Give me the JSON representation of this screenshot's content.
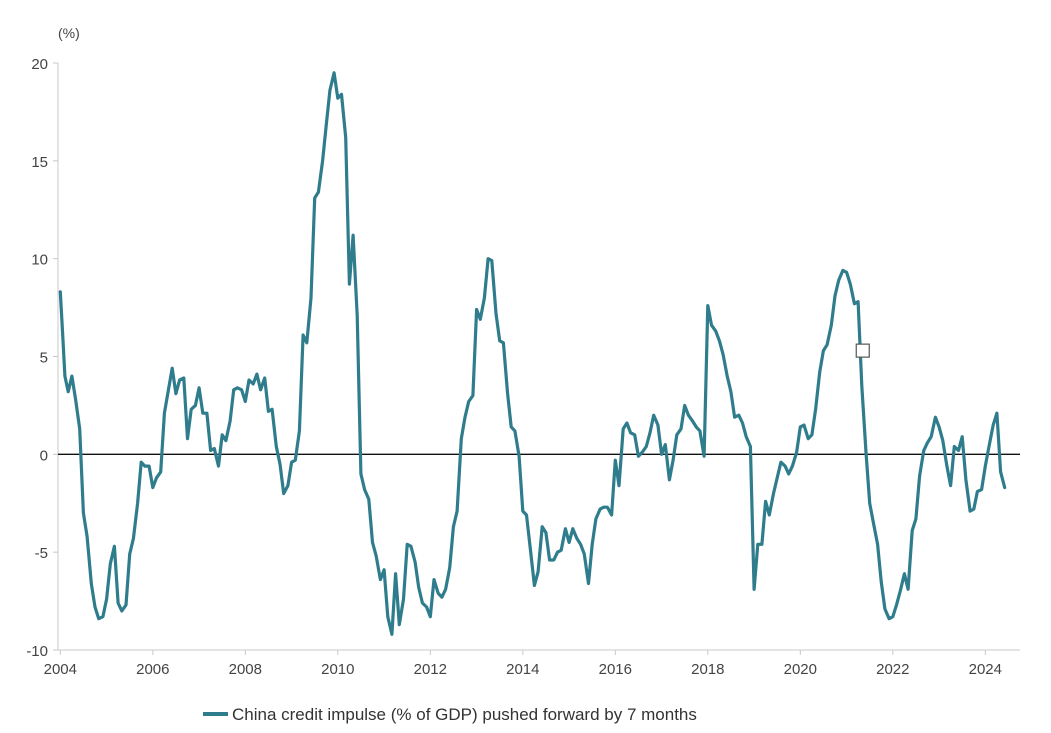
{
  "chart_data": {
    "type": "line",
    "title": "",
    "xlabel": "",
    "ylabel": "(%)",
    "xlim": [
      2003.95,
      2024.75
    ],
    "ylim": [
      -10,
      20
    ],
    "x_ticks": [
      "2004",
      "2006",
      "2008",
      "2010",
      "2012",
      "2014",
      "2016",
      "2018",
      "2020",
      "2022",
      "2024"
    ],
    "y_ticks": [
      "20",
      "15",
      "10",
      "5",
      "0",
      "-5",
      "-10"
    ],
    "grid": false,
    "zero_line": true,
    "legend_position": "bottom-center",
    "legend_marker": "line",
    "annotation_marker": {
      "shape": "square",
      "x": 2021.35,
      "y": 5.3
    },
    "series": [
      {
        "name": "China credit impulse (% of GDP) pushed forward by 7 months",
        "color": "#2f7d8c",
        "points": [
          [
            2004.0,
            8.3
          ],
          [
            2004.05,
            6.2
          ],
          [
            2004.1,
            4.0
          ],
          [
            2004.17,
            3.2
          ],
          [
            2004.25,
            4.0
          ],
          [
            2004.33,
            2.8
          ],
          [
            2004.42,
            1.3
          ],
          [
            2004.5,
            -3.0
          ],
          [
            2004.58,
            -4.2
          ],
          [
            2004.67,
            -6.6
          ],
          [
            2004.75,
            -7.8
          ],
          [
            2004.83,
            -8.4
          ],
          [
            2004.92,
            -8.3
          ],
          [
            2005.0,
            -7.4
          ],
          [
            2005.08,
            -5.6
          ],
          [
            2005.17,
            -4.7
          ],
          [
            2005.25,
            -7.6
          ],
          [
            2005.33,
            -8.0
          ],
          [
            2005.42,
            -7.7
          ],
          [
            2005.5,
            -5.1
          ],
          [
            2005.58,
            -4.3
          ],
          [
            2005.67,
            -2.5
          ],
          [
            2005.75,
            -0.4
          ],
          [
            2005.83,
            -0.6
          ],
          [
            2005.92,
            -0.6
          ],
          [
            2006.0,
            -1.7
          ],
          [
            2006.08,
            -1.2
          ],
          [
            2006.17,
            -0.9
          ],
          [
            2006.25,
            2.1
          ],
          [
            2006.33,
            3.2
          ],
          [
            2006.42,
            4.4
          ],
          [
            2006.5,
            3.1
          ],
          [
            2006.58,
            3.8
          ],
          [
            2006.67,
            3.9
          ],
          [
            2006.75,
            0.8
          ],
          [
            2006.83,
            2.3
          ],
          [
            2006.92,
            2.5
          ],
          [
            2007.0,
            3.4
          ],
          [
            2007.08,
            2.1
          ],
          [
            2007.17,
            2.1
          ],
          [
            2007.25,
            0.2
          ],
          [
            2007.33,
            0.3
          ],
          [
            2007.42,
            -0.6
          ],
          [
            2007.5,
            1.0
          ],
          [
            2007.58,
            0.7
          ],
          [
            2007.67,
            1.7
          ],
          [
            2007.75,
            3.3
          ],
          [
            2007.83,
            3.4
          ],
          [
            2007.92,
            3.3
          ],
          [
            2008.0,
            2.7
          ],
          [
            2008.08,
            3.8
          ],
          [
            2008.17,
            3.6
          ],
          [
            2008.25,
            4.1
          ],
          [
            2008.33,
            3.3
          ],
          [
            2008.42,
            3.9
          ],
          [
            2008.5,
            2.2
          ],
          [
            2008.58,
            2.3
          ],
          [
            2008.67,
            0.4
          ],
          [
            2008.75,
            -0.5
          ],
          [
            2008.83,
            -2.0
          ],
          [
            2008.92,
            -1.6
          ],
          [
            2009.0,
            -0.4
          ],
          [
            2009.08,
            -0.3
          ],
          [
            2009.17,
            1.2
          ],
          [
            2009.25,
            6.1
          ],
          [
            2009.33,
            5.7
          ],
          [
            2009.42,
            8.0
          ],
          [
            2009.5,
            13.1
          ],
          [
            2009.58,
            13.4
          ],
          [
            2009.67,
            15.0
          ],
          [
            2009.75,
            16.8
          ],
          [
            2009.83,
            18.6
          ],
          [
            2009.92,
            19.5
          ],
          [
            2010.0,
            18.2
          ],
          [
            2010.08,
            18.4
          ],
          [
            2010.17,
            16.2
          ],
          [
            2010.25,
            8.7
          ],
          [
            2010.33,
            11.2
          ],
          [
            2010.42,
            7.1
          ],
          [
            2010.5,
            -1.0
          ],
          [
            2010.58,
            -1.8
          ],
          [
            2010.67,
            -2.3
          ],
          [
            2010.75,
            -4.5
          ],
          [
            2010.83,
            -5.2
          ],
          [
            2010.92,
            -6.4
          ],
          [
            2011.0,
            -5.9
          ],
          [
            2011.08,
            -8.3
          ],
          [
            2011.17,
            -9.2
          ],
          [
            2011.25,
            -6.1
          ],
          [
            2011.33,
            -8.7
          ],
          [
            2011.42,
            -7.4
          ],
          [
            2011.5,
            -4.6
          ],
          [
            2011.58,
            -4.7
          ],
          [
            2011.67,
            -5.5
          ],
          [
            2011.75,
            -6.8
          ],
          [
            2011.83,
            -7.6
          ],
          [
            2011.92,
            -7.8
          ],
          [
            2012.0,
            -8.3
          ],
          [
            2012.08,
            -6.4
          ],
          [
            2012.17,
            -7.1
          ],
          [
            2012.25,
            -7.3
          ],
          [
            2012.33,
            -6.9
          ],
          [
            2012.42,
            -5.8
          ],
          [
            2012.5,
            -3.7
          ],
          [
            2012.58,
            -2.9
          ],
          [
            2012.67,
            0.8
          ],
          [
            2012.75,
            1.9
          ],
          [
            2012.83,
            2.7
          ],
          [
            2012.92,
            3.0
          ],
          [
            2013.0,
            7.4
          ],
          [
            2013.08,
            6.9
          ],
          [
            2013.17,
            8.0
          ],
          [
            2013.25,
            10.0
          ],
          [
            2013.33,
            9.9
          ],
          [
            2013.42,
            7.2
          ],
          [
            2013.5,
            5.8
          ],
          [
            2013.58,
            5.7
          ],
          [
            2013.67,
            3.1
          ],
          [
            2013.75,
            1.4
          ],
          [
            2013.83,
            1.2
          ],
          [
            2013.92,
            -0.1
          ],
          [
            2014.0,
            -2.9
          ],
          [
            2014.08,
            -3.1
          ],
          [
            2014.17,
            -5.0
          ],
          [
            2014.25,
            -6.7
          ],
          [
            2014.33,
            -6.0
          ],
          [
            2014.42,
            -3.7
          ],
          [
            2014.5,
            -4.0
          ],
          [
            2014.58,
            -5.4
          ],
          [
            2014.67,
            -5.4
          ],
          [
            2014.75,
            -5.0
          ],
          [
            2014.83,
            -4.9
          ],
          [
            2014.92,
            -3.8
          ],
          [
            2015.0,
            -4.5
          ],
          [
            2015.08,
            -3.8
          ],
          [
            2015.17,
            -4.3
          ],
          [
            2015.25,
            -4.6
          ],
          [
            2015.33,
            -5.1
          ],
          [
            2015.42,
            -6.6
          ],
          [
            2015.5,
            -4.6
          ],
          [
            2015.58,
            -3.3
          ],
          [
            2015.67,
            -2.8
          ],
          [
            2015.75,
            -2.7
          ],
          [
            2015.83,
            -2.7
          ],
          [
            2015.92,
            -3.1
          ],
          [
            2016.0,
            -0.3
          ],
          [
            2016.08,
            -1.6
          ],
          [
            2016.17,
            1.3
          ],
          [
            2016.25,
            1.6
          ],
          [
            2016.33,
            1.1
          ],
          [
            2016.42,
            1.0
          ],
          [
            2016.5,
            -0.1
          ],
          [
            2016.58,
            0.1
          ],
          [
            2016.67,
            0.4
          ],
          [
            2016.75,
            1.1
          ],
          [
            2016.83,
            2.0
          ],
          [
            2016.92,
            1.5
          ],
          [
            2017.0,
            0.0
          ],
          [
            2017.08,
            0.5
          ],
          [
            2017.17,
            -1.3
          ],
          [
            2017.25,
            -0.3
          ],
          [
            2017.33,
            1.0
          ],
          [
            2017.42,
            1.3
          ],
          [
            2017.5,
            2.5
          ],
          [
            2017.58,
            2.0
          ],
          [
            2017.67,
            1.7
          ],
          [
            2017.75,
            1.4
          ],
          [
            2017.83,
            1.2
          ],
          [
            2017.92,
            -0.1
          ],
          [
            2018.0,
            7.6
          ],
          [
            2018.08,
            6.6
          ],
          [
            2018.17,
            6.3
          ],
          [
            2018.25,
            5.8
          ],
          [
            2018.33,
            5.1
          ],
          [
            2018.42,
            4.0
          ],
          [
            2018.5,
            3.2
          ],
          [
            2018.58,
            1.9
          ],
          [
            2018.67,
            2.0
          ],
          [
            2018.75,
            1.6
          ],
          [
            2018.83,
            0.9
          ],
          [
            2018.92,
            0.4
          ],
          [
            2019.0,
            -6.9
          ],
          [
            2019.08,
            -4.6
          ],
          [
            2019.17,
            -4.6
          ],
          [
            2019.25,
            -2.4
          ],
          [
            2019.33,
            -3.1
          ],
          [
            2019.42,
            -2.0
          ],
          [
            2019.5,
            -1.2
          ],
          [
            2019.58,
            -0.4
          ],
          [
            2019.67,
            -0.6
          ],
          [
            2019.75,
            -1.0
          ],
          [
            2019.83,
            -0.6
          ],
          [
            2019.92,
            0.1
          ],
          [
            2020.0,
            1.4
          ],
          [
            2020.08,
            1.5
          ],
          [
            2020.17,
            0.8
          ],
          [
            2020.25,
            1.0
          ],
          [
            2020.33,
            2.3
          ],
          [
            2020.42,
            4.2
          ],
          [
            2020.5,
            5.3
          ],
          [
            2020.58,
            5.6
          ],
          [
            2020.67,
            6.6
          ],
          [
            2020.75,
            8.1
          ],
          [
            2020.83,
            8.9
          ],
          [
            2020.92,
            9.4
          ],
          [
            2021.0,
            9.3
          ],
          [
            2021.08,
            8.7
          ],
          [
            2021.17,
            7.7
          ],
          [
            2021.25,
            7.8
          ],
          [
            2021.33,
            3.5
          ],
          [
            2021.42,
            0.1
          ],
          [
            2021.5,
            -2.5
          ],
          [
            2021.58,
            -3.5
          ],
          [
            2021.67,
            -4.6
          ],
          [
            2021.75,
            -6.5
          ],
          [
            2021.83,
            -7.9
          ],
          [
            2021.92,
            -8.4
          ],
          [
            2022.0,
            -8.3
          ],
          [
            2022.08,
            -7.7
          ],
          [
            2022.17,
            -6.9
          ],
          [
            2022.25,
            -6.1
          ],
          [
            2022.33,
            -6.9
          ],
          [
            2022.42,
            -3.9
          ],
          [
            2022.5,
            -3.3
          ],
          [
            2022.58,
            -1.1
          ],
          [
            2022.67,
            0.2
          ],
          [
            2022.75,
            0.6
          ],
          [
            2022.83,
            0.9
          ],
          [
            2022.92,
            1.9
          ],
          [
            2023.0,
            1.4
          ],
          [
            2023.08,
            0.7
          ],
          [
            2023.17,
            -0.6
          ],
          [
            2023.25,
            -1.6
          ],
          [
            2023.33,
            0.4
          ],
          [
            2023.42,
            0.2
          ],
          [
            2023.5,
            0.9
          ],
          [
            2023.58,
            -1.3
          ],
          [
            2023.67,
            -2.9
          ],
          [
            2023.75,
            -2.8
          ],
          [
            2023.83,
            -1.9
          ],
          [
            2023.92,
            -1.8
          ],
          [
            2024.0,
            -0.6
          ],
          [
            2024.08,
            0.4
          ],
          [
            2024.17,
            1.5
          ],
          [
            2024.25,
            2.1
          ],
          [
            2024.33,
            -0.9
          ],
          [
            2024.42,
            -1.7
          ]
        ]
      }
    ]
  }
}
